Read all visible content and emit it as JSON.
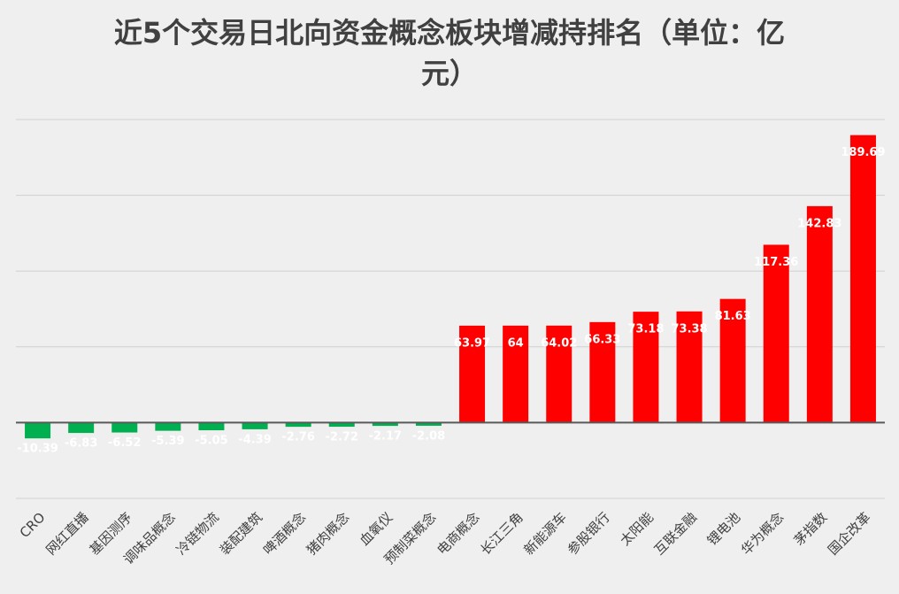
{
  "chart_data": {
    "type": "bar",
    "title": "近5个交易日北向资金概念板块增减持排名（单位：亿元）",
    "categories": [
      "CRO",
      "网红直播",
      "基因测序",
      "调味品概念",
      "冷链物流",
      "装配建筑",
      "啤酒概念",
      "猪肉概念",
      "血氧仪",
      "预制菜概念",
      "电商概念",
      "长江三角",
      "新能源车",
      "参股银行",
      "太阳能",
      "互联金融",
      "锂电池",
      "华为概念",
      "茅指数",
      "国企改革"
    ],
    "values": [
      -10.39,
      -6.83,
      -6.52,
      -5.39,
      -5.05,
      -4.39,
      -2.76,
      -2.72,
      -2.17,
      -2.08,
      63.97,
      64,
      64.02,
      66.33,
      73.18,
      73.38,
      81.63,
      117.36,
      142.83,
      189.69
    ],
    "color": "#ff0000",
    "negative_color": "#00b050",
    "ylim": [
      -50,
      200
    ],
    "yticks": [
      -50,
      0,
      50,
      100,
      150,
      200
    ],
    "grid": true
  }
}
